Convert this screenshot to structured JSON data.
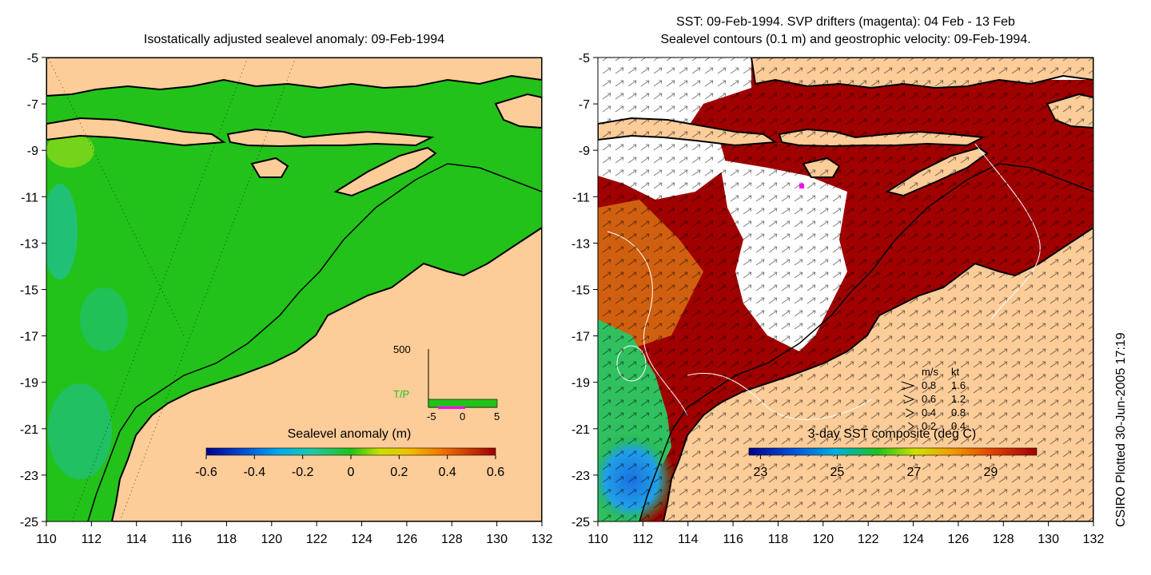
{
  "left_panel": {
    "title": "Isostatically adjusted sealevel anomaly: 09-Feb-1994",
    "colorbar": {
      "label": "Sealevel anomaly (m)",
      "ticks": [
        "-0.6",
        "-0.4",
        "-0.2",
        "0",
        "0.2",
        "0.4",
        "0.6"
      ],
      "range": [
        -0.6,
        0.6
      ]
    },
    "inset": {
      "y_label": "500",
      "series_label": "T/P",
      "x_ticks": [
        "-5",
        "0",
        "5"
      ]
    }
  },
  "right_panel": {
    "title_line1": "SST: 09-Feb-1994. SVP drifters (magenta): 04 Feb - 13 Feb",
    "title_line2": "Sealevel contours (0.1 m) and geostrophic velocity: 09-Feb-1994.",
    "colorbar": {
      "label": "3-day SST composite (deg C)",
      "ticks": [
        "23",
        "25",
        "27",
        "29"
      ],
      "range": [
        22.7,
        30.2
      ]
    },
    "velocity_legend": {
      "header_ms": "m/s",
      "header_kt": "kt",
      "rows": [
        {
          "ms": "0.8",
          "kt": "1.6"
        },
        {
          "ms": "0.6",
          "kt": "1.2"
        },
        {
          "ms": "0.4",
          "kt": "0.8"
        },
        {
          "ms": "0.2",
          "kt": "0.4"
        }
      ]
    }
  },
  "axes": {
    "x_ticks": [
      "110",
      "112",
      "114",
      "116",
      "118",
      "120",
      "122",
      "124",
      "126",
      "128",
      "130",
      "132"
    ],
    "y_ticks": [
      "-5",
      "-7",
      "-9",
      "-11",
      "-13",
      "-15",
      "-17",
      "-19",
      "-21",
      "-23",
      "-25"
    ],
    "lon_range": [
      110,
      132
    ],
    "lat_range": [
      -25,
      -5
    ]
  },
  "side_label": "CSIRO Plotted 30-Jun-2005 17:19",
  "colors": {
    "land": "#fccc99",
    "ocean_anomaly": "#22c21a",
    "sst_warm": "#a00000",
    "sst_mid": "#d06010",
    "cloud": "#ffffff"
  }
}
